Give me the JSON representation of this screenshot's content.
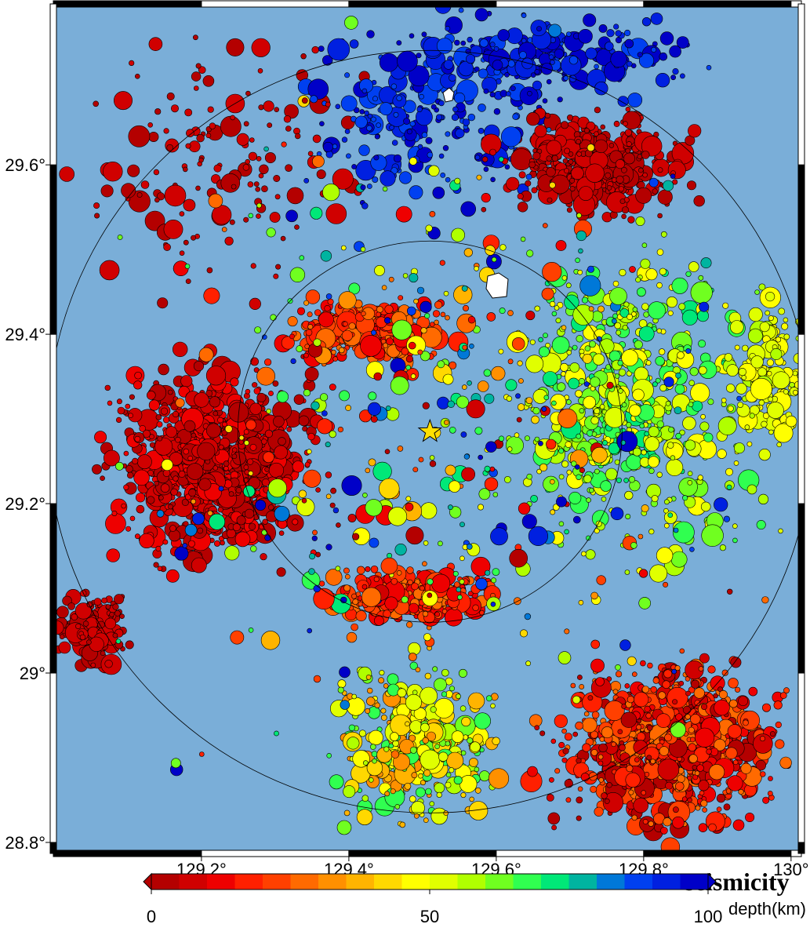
{
  "map": {
    "title": "seismicity",
    "xlim": [
      128.999,
      130.014
    ],
    "ylim": [
      28.787,
      29.79
    ],
    "xticks": [
      {
        "value": 129.2,
        "label": "129.2°"
      },
      {
        "value": 129.4,
        "label": "129.4°"
      },
      {
        "value": 129.6,
        "label": "129.6°"
      },
      {
        "value": 129.8,
        "label": "129.8°"
      },
      {
        "value": 130,
        "label": "130°"
      }
    ],
    "yticks": [
      {
        "value": 28.8,
        "label": "28.8°"
      },
      {
        "value": 29,
        "label": "29°"
      },
      {
        "value": 29.2,
        "label": "29.2°"
      },
      {
        "value": 29.4,
        "label": "29.4°"
      },
      {
        "value": 29.6,
        "label": "29.6°"
      }
    ],
    "epicenter": {
      "lon": 129.51,
      "lat": 29.285,
      "color": "#ffe000"
    },
    "sea_color": "#7aaed8",
    "colorbar": {
      "label": "depth(km)",
      "range": [
        0,
        100
      ],
      "ticks": [
        0,
        50,
        100
      ],
      "colors": [
        "#b40000",
        "#d00000",
        "#ee0000",
        "#ff2000",
        "#ff4000",
        "#ff6a00",
        "#ff9000",
        "#ffb400",
        "#ffd800",
        "#ffff00",
        "#e0ff00",
        "#b0ff00",
        "#70ff20",
        "#30ff50",
        "#00e878",
        "#00b4a0",
        "#0078d8",
        "#0040f0",
        "#0020e0",
        "#0000c8"
      ]
    }
  }
}
